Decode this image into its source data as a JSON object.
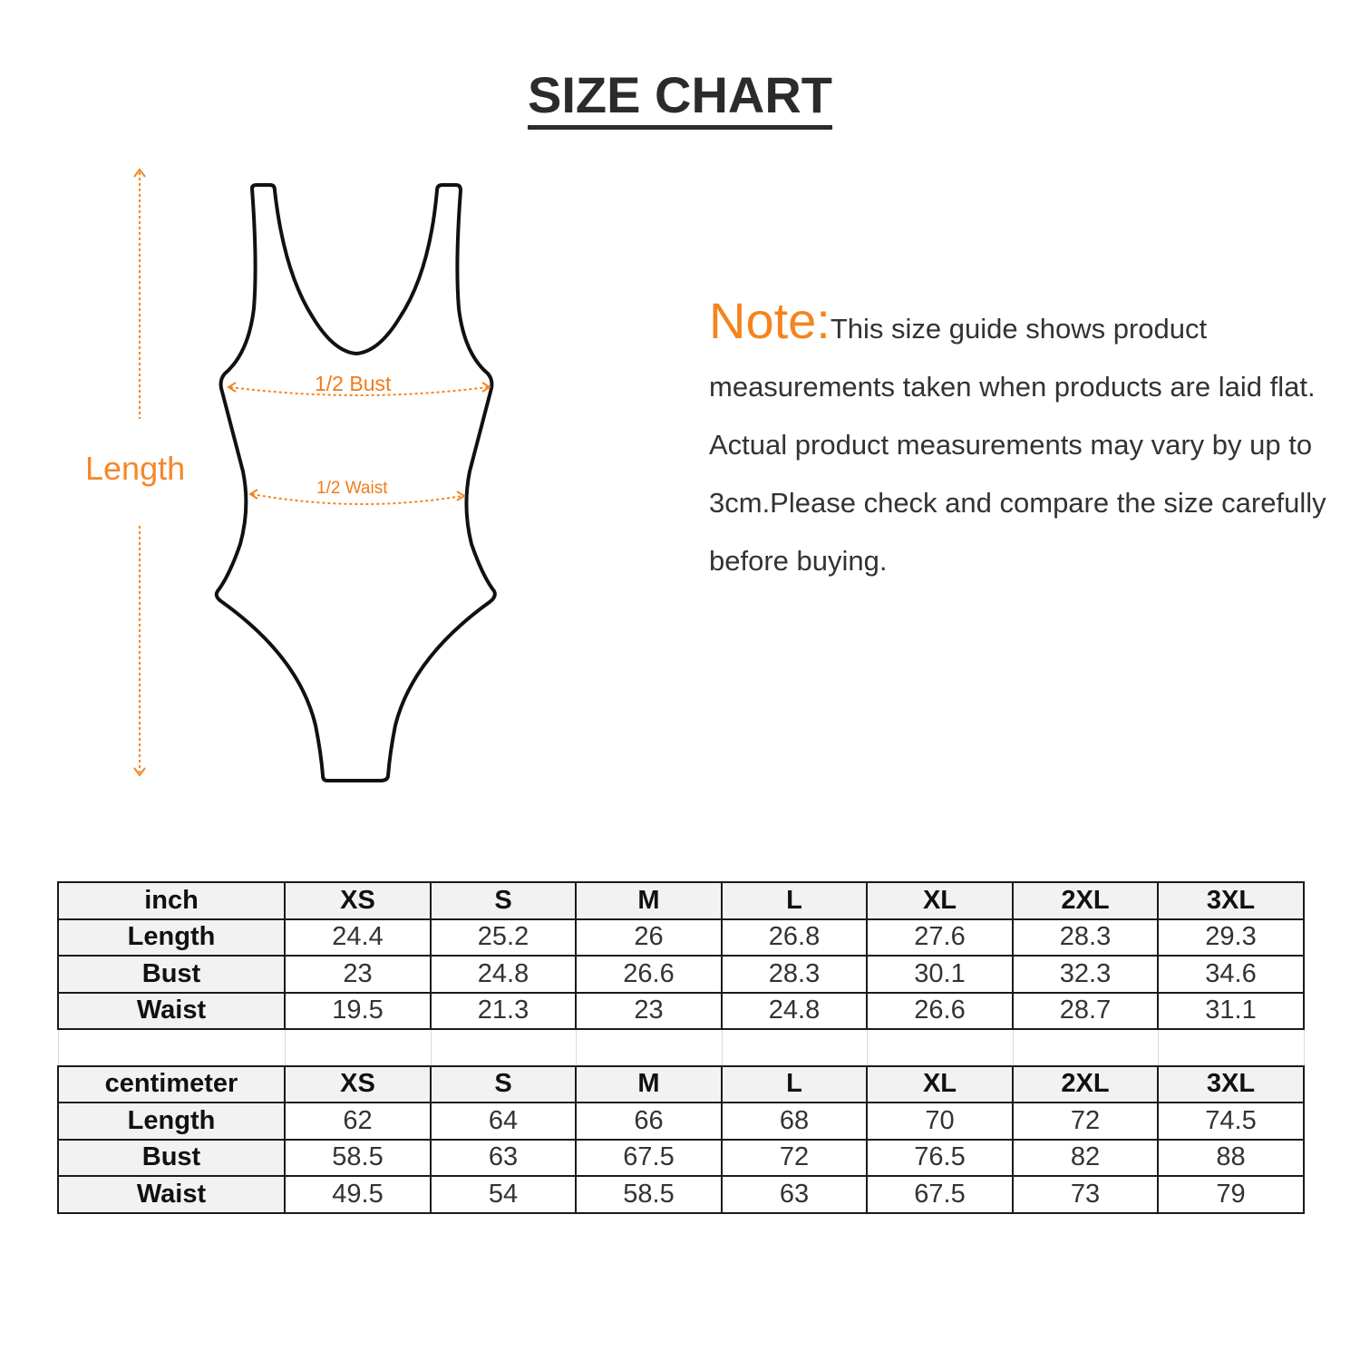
{
  "title": "SIZE CHART",
  "diagram": {
    "length_label": "Length",
    "bust_label": "1/2 Bust",
    "waist_label": "1/2 Waist",
    "accent_color": "#f5841f"
  },
  "note": {
    "heading": "Note:",
    "text": "This size guide shows product measurements taken when products are laid flat. Actual product measurements may vary by up to 3cm.Please check and compare the size carefully before buying."
  },
  "tables": [
    {
      "unit": "inch",
      "sizes": [
        "XS",
        "S",
        "M",
        "L",
        "XL",
        "2XL",
        "3XL"
      ],
      "rows": [
        {
          "label": "Length",
          "values": [
            "24.4",
            "25.2",
            "26",
            "26.8",
            "27.6",
            "28.3",
            "29.3"
          ]
        },
        {
          "label": "Bust",
          "values": [
            "23",
            "24.8",
            "26.6",
            "28.3",
            "30.1",
            "32.3",
            "34.6"
          ]
        },
        {
          "label": "Waist",
          "values": [
            "19.5",
            "21.3",
            "23",
            "24.8",
            "26.6",
            "28.7",
            "31.1"
          ]
        }
      ]
    },
    {
      "unit": "centimeter",
      "sizes": [
        "XS",
        "S",
        "M",
        "L",
        "XL",
        "2XL",
        "3XL"
      ],
      "rows": [
        {
          "label": "Length",
          "values": [
            "62",
            "64",
            "66",
            "68",
            "70",
            "72",
            "74.5"
          ]
        },
        {
          "label": "Bust",
          "values": [
            "58.5",
            "63",
            "67.5",
            "72",
            "76.5",
            "82",
            "88"
          ]
        },
        {
          "label": "Waist",
          "values": [
            "49.5",
            "54",
            "58.5",
            "63",
            "67.5",
            "73",
            "79"
          ]
        }
      ]
    }
  ]
}
